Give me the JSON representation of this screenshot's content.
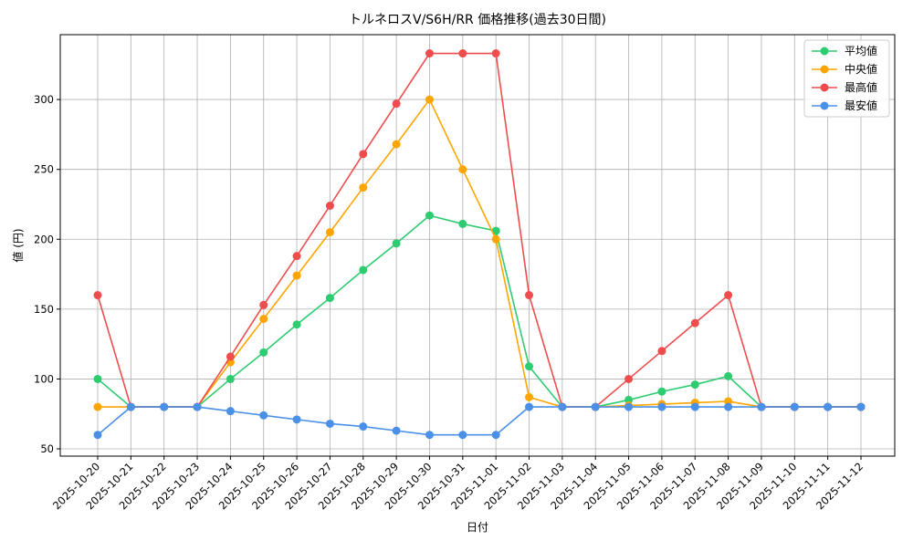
{
  "chart_data": {
    "type": "line",
    "title": "トルネロスV/S6H/RR 価格推移(過去30日間)",
    "xlabel": "日付",
    "ylabel": "値 (円)",
    "categories": [
      "2025-10-20",
      "2025-10-21",
      "2025-10-22",
      "2025-10-23",
      "2025-10-24",
      "2025-10-25",
      "2025-10-26",
      "2025-10-27",
      "2025-10-28",
      "2025-10-29",
      "2025-10-30",
      "2025-10-31",
      "2025-11-01",
      "2025-11-02",
      "2025-11-03",
      "2025-11-04",
      "2025-11-05",
      "2025-11-06",
      "2025-11-07",
      "2025-11-08",
      "2025-11-09",
      "2025-11-10",
      "2025-11-11",
      "2025-11-12"
    ],
    "series": [
      {
        "name": "平均値",
        "color": "#2ecc71",
        "values": [
          100,
          80,
          80,
          80,
          100,
          119,
          139,
          158,
          178,
          197,
          217,
          211,
          206,
          109,
          80,
          80,
          85,
          91,
          96,
          102,
          80,
          80,
          80,
          80
        ]
      },
      {
        "name": "中央値",
        "color": "#ffa500",
        "values": [
          80,
          80,
          80,
          80,
          112,
          143,
          174,
          205,
          237,
          268,
          300,
          250,
          200,
          87,
          80,
          80,
          81,
          82,
          83,
          84,
          80,
          80,
          80,
          80
        ]
      },
      {
        "name": "最高値",
        "color": "#ef4d4d",
        "values": [
          160,
          80,
          80,
          80,
          116,
          153,
          188,
          224,
          261,
          297,
          333,
          333,
          333,
          160,
          80,
          80,
          100,
          120,
          140,
          160,
          80,
          80,
          80,
          80
        ]
      },
      {
        "name": "最安値",
        "color": "#4a90e8",
        "values": [
          60,
          80,
          80,
          80,
          77,
          74,
          71,
          68,
          66,
          63,
          60,
          60,
          60,
          80,
          80,
          80,
          80,
          80,
          80,
          80,
          80,
          80,
          80,
          80
        ]
      }
    ],
    "ylim": [
      44.8,
      346.4
    ],
    "yticks": [
      50,
      100,
      150,
      200,
      250,
      300
    ],
    "grid": true,
    "legend": "upper right"
  }
}
